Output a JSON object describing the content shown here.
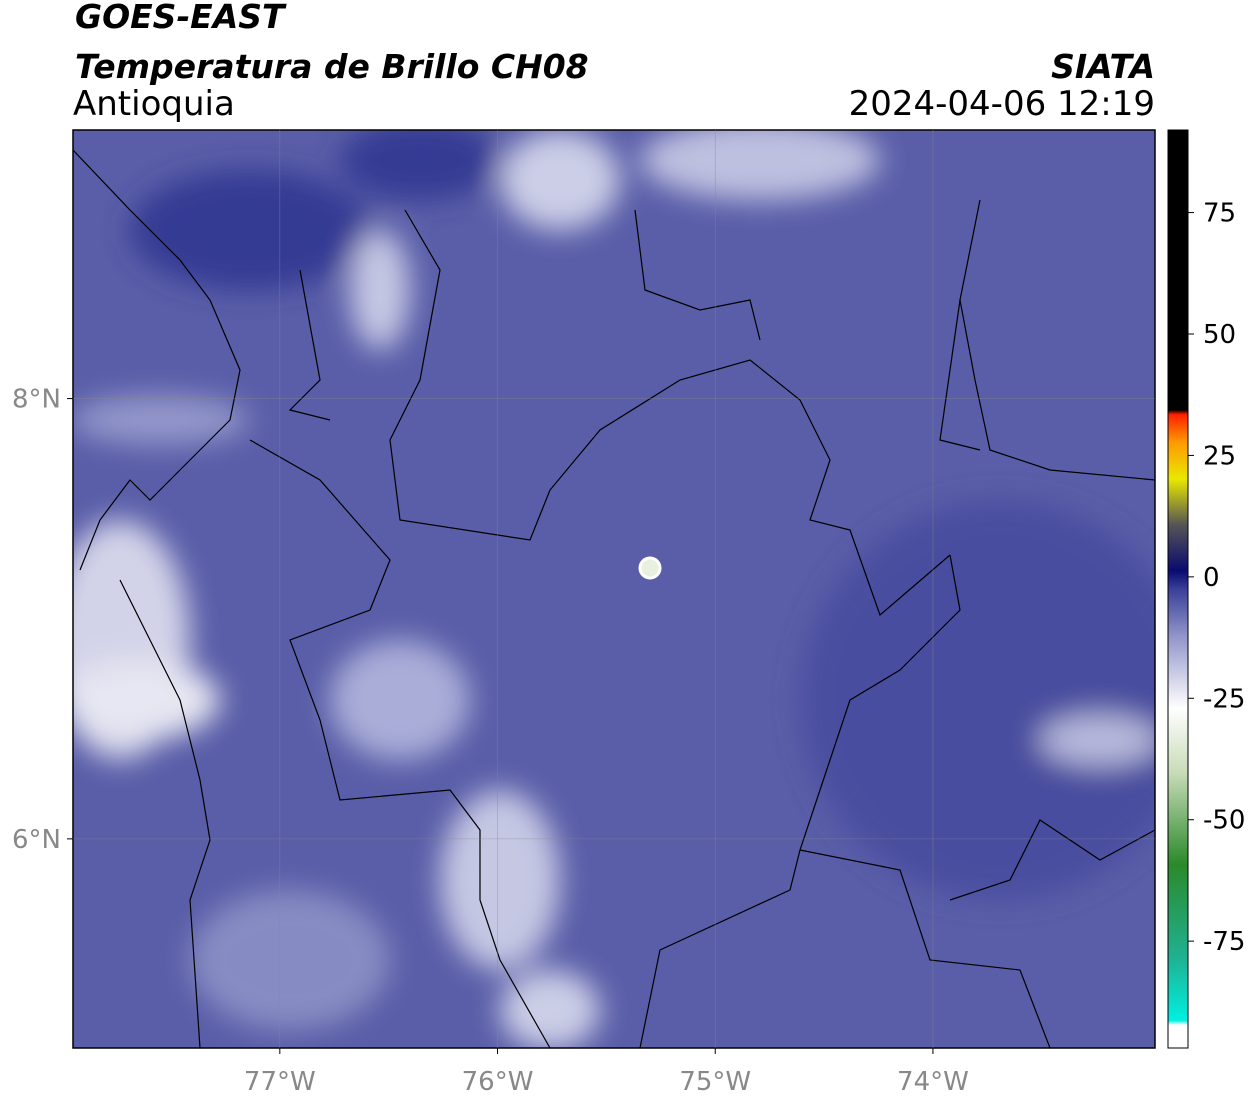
{
  "header": {
    "title": "GOES-EAST",
    "product": "Temperatura de Brillo CH08",
    "region": "Antioquia",
    "source": "SIATA",
    "datetime": "2024-04-06 12:19"
  },
  "map": {
    "xlim": [
      -77.95,
      -72.98
    ],
    "ylim": [
      5.05,
      9.22
    ],
    "xticks": [
      {
        "value": -77,
        "label": "77°W"
      },
      {
        "value": -76,
        "label": "76°W"
      },
      {
        "value": -75,
        "label": "75°W"
      },
      {
        "value": -74,
        "label": "74°W"
      }
    ],
    "yticks": [
      {
        "value": 6,
        "label": "6°N"
      },
      {
        "value": 8,
        "label": "8°N"
      }
    ],
    "grid": true
  },
  "colorbar": {
    "lim": [
      -97,
      92
    ],
    "ticks": [
      75,
      50,
      25,
      0,
      -25,
      -50,
      -75
    ]
  }
}
